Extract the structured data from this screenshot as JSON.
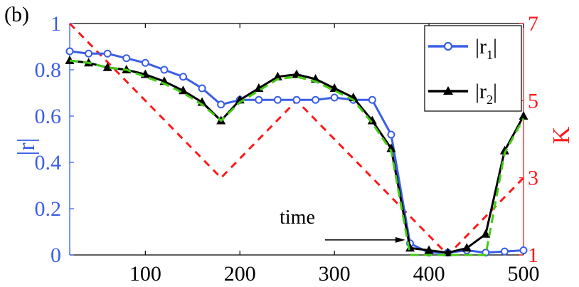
{
  "chart_data": {
    "type": "line",
    "panel_label": "(b)",
    "xlim": [
      20,
      500
    ],
    "x_ticks": [
      100,
      200,
      300,
      400,
      500
    ],
    "left_axis": {
      "label": "|r|",
      "ylim": [
        0,
        1
      ],
      "ticks": [
        "0",
        "0.2",
        "0.4",
        "0.6",
        "0.8",
        "1"
      ],
      "tick_values": [
        0,
        0.2,
        0.4,
        0.6,
        0.8,
        1
      ],
      "color": "#3a5ee8"
    },
    "right_axis": {
      "label": "K",
      "ylim": [
        1,
        7
      ],
      "ticks": [
        "1",
        "3",
        "5",
        "7"
      ],
      "tick_values": [
        1,
        3,
        5,
        7
      ],
      "color": "#ff1a1a"
    },
    "annotation": {
      "text": "time",
      "arrow_from_x": 290,
      "arrow_to_x": 375,
      "arrow_y": 0.065
    },
    "legend": {
      "position": "top-right",
      "entries": [
        {
          "series": 0,
          "main": "|r",
          "sub": "1",
          "tail": "|"
        },
        {
          "series": 1,
          "main": "|r",
          "sub": "2",
          "tail": "|"
        }
      ]
    },
    "series": [
      {
        "name": "|r1|",
        "axis": "left",
        "color": "#3a5ee8",
        "marker": "circle",
        "x": [
          20,
          40,
          60,
          80,
          100,
          120,
          140,
          160,
          180,
          200,
          220,
          240,
          260,
          280,
          300,
          320,
          340,
          360,
          380,
          400,
          420,
          440,
          460,
          480,
          500
        ],
        "y": [
          0.88,
          0.87,
          0.87,
          0.85,
          0.83,
          0.8,
          0.77,
          0.72,
          0.65,
          0.67,
          0.67,
          0.67,
          0.67,
          0.67,
          0.68,
          0.67,
          0.67,
          0.52,
          0.05,
          0.01,
          0.01,
          0.02,
          0.01,
          0.015,
          0.02
        ]
      },
      {
        "name": "|r2|",
        "axis": "left",
        "color": "#000000",
        "marker": "triangle",
        "x": [
          20,
          40,
          60,
          80,
          100,
          120,
          140,
          160,
          180,
          200,
          220,
          240,
          260,
          280,
          300,
          320,
          340,
          360,
          380,
          400,
          420,
          440,
          460,
          480,
          500
        ],
        "y": [
          0.84,
          0.83,
          0.81,
          0.8,
          0.78,
          0.75,
          0.71,
          0.66,
          0.58,
          0.67,
          0.72,
          0.77,
          0.78,
          0.76,
          0.72,
          0.68,
          0.58,
          0.46,
          0.03,
          0.02,
          0.01,
          0.03,
          0.09,
          0.45,
          0.6
        ]
      },
      {
        "name": "green dashed",
        "axis": "left",
        "color": "#44cc11",
        "dashed": true,
        "marker": "none",
        "x": [
          20,
          40,
          60,
          80,
          100,
          120,
          140,
          160,
          180,
          200,
          220,
          240,
          260,
          280,
          300,
          320,
          340,
          360,
          380,
          400,
          420,
          440,
          460,
          480,
          500
        ],
        "y": [
          0.84,
          0.83,
          0.81,
          0.8,
          0.77,
          0.74,
          0.7,
          0.65,
          0.58,
          0.66,
          0.71,
          0.76,
          0.77,
          0.75,
          0.71,
          0.67,
          0.57,
          0.45,
          0.0,
          0.0,
          0.0,
          0.0,
          0.0,
          0.44,
          0.59
        ]
      },
      {
        "name": "K",
        "axis": "right",
        "color": "#ff1a1a",
        "dashed": true,
        "marker": "none",
        "x": [
          20,
          180,
          260,
          420,
          500
        ],
        "y": [
          7,
          3,
          5,
          1,
          3
        ]
      }
    ]
  }
}
